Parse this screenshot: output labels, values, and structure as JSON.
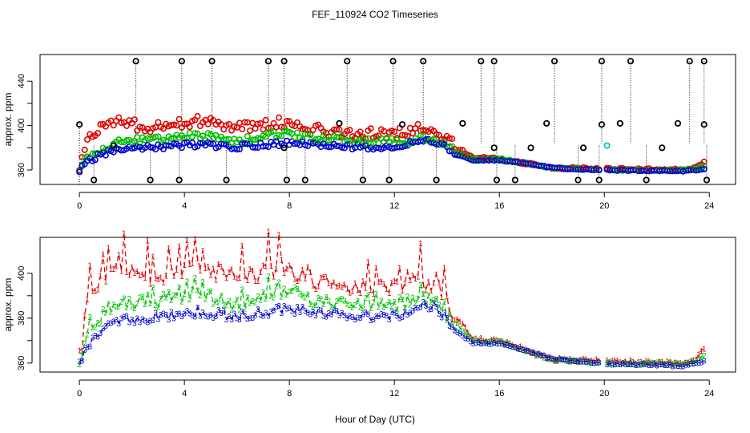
{
  "title": "FEF_110924  CO2 Timeseries",
  "xlabel": "Hour of Day (UTC)",
  "colors": {
    "black": "#000000",
    "red": "#e00000",
    "green": "#00c000",
    "blue": "#0000d0",
    "cyan": "#00c8c8"
  },
  "chart_data": [
    {
      "type": "scatter",
      "name": "top-panel",
      "ylabel": "approx. ppm",
      "xlim": [
        -1.5,
        25
      ],
      "ylim": [
        347,
        464
      ],
      "xticks": [
        0,
        4,
        8,
        12,
        16,
        20,
        24
      ],
      "yticks": [
        360,
        400,
        440
      ],
      "yticks_minor": [
        380,
        420
      ],
      "spike_high": 458,
      "spike_low": 351,
      "spike_base": 402,
      "high_spikes": [
        2.15,
        3.9,
        5.05,
        7.2,
        7.8,
        10.2,
        11.95,
        13.1,
        15.3,
        15.8,
        18.1,
        19.9,
        21.0,
        23.25,
        23.8
      ],
      "low_spikes": [
        0.55,
        2.7,
        3.8,
        5.6,
        7.9,
        8.6,
        10.8,
        11.8,
        13.6,
        15.9,
        16.6,
        19.0,
        19.8,
        21.6,
        23.9
      ],
      "mid_markers": [
        {
          "x": 0.0,
          "y": 401
        },
        {
          "x": 1.3,
          "y": 382
        },
        {
          "x": 7.8,
          "y": 380
        },
        {
          "x": 9.9,
          "y": 402
        },
        {
          "x": 12.3,
          "y": 401
        },
        {
          "x": 14.6,
          "y": 402
        },
        {
          "x": 15.8,
          "y": 380
        },
        {
          "x": 17.2,
          "y": 380
        },
        {
          "x": 17.8,
          "y": 402
        },
        {
          "x": 19.2,
          "y": 380
        },
        {
          "x": 19.9,
          "y": 401
        },
        {
          "x": 20.6,
          "y": 402
        },
        {
          "x": 22.2,
          "y": 380
        },
        {
          "x": 22.8,
          "y": 402
        },
        {
          "x": 23.8,
          "y": 401
        }
      ],
      "cyan_marker": {
        "x": 20.1,
        "y": 382
      }
    },
    {
      "type": "line",
      "name": "bottom-panel",
      "ylabel": "approx. ppm",
      "xlim": [
        -1.5,
        25
      ],
      "ylim": [
        356,
        416
      ],
      "xticks": [
        0,
        4,
        8,
        12,
        16,
        20,
        24
      ],
      "yticks": [
        360,
        380,
        400
      ],
      "yticks_minor": [
        370,
        390
      ],
      "series": [
        {
          "name": "1",
          "color": "#e00000"
        },
        {
          "name": "2",
          "color": "#00c000"
        },
        {
          "name": "3",
          "color": "#0000d0"
        }
      ],
      "gap": [
        19.85,
        20.05
      ],
      "anchors": [
        {
          "h": 0.0,
          "r": 362,
          "g": 361,
          "b": 360
        },
        {
          "h": 0.3,
          "r": 385,
          "g": 372,
          "b": 367
        },
        {
          "h": 0.8,
          "r": 398,
          "g": 378,
          "b": 374
        },
        {
          "h": 1.5,
          "r": 405,
          "g": 386,
          "b": 379
        },
        {
          "h": 2.5,
          "r": 398,
          "g": 387,
          "b": 380
        },
        {
          "h": 4.5,
          "r": 404,
          "g": 391,
          "b": 383
        },
        {
          "h": 6.0,
          "r": 398,
          "g": 386,
          "b": 381
        },
        {
          "h": 7.8,
          "r": 403,
          "g": 393,
          "b": 384
        },
        {
          "h": 9.0,
          "r": 396,
          "g": 388,
          "b": 383
        },
        {
          "h": 10.5,
          "r": 393,
          "g": 387,
          "b": 381
        },
        {
          "h": 12.0,
          "r": 393,
          "g": 385,
          "b": 381
        },
        {
          "h": 13.0,
          "r": 397,
          "g": 389,
          "b": 386
        },
        {
          "h": 13.6,
          "r": 396,
          "g": 388,
          "b": 385
        },
        {
          "h": 14.3,
          "r": 382,
          "g": 377,
          "b": 375
        },
        {
          "h": 15.0,
          "r": 371,
          "g": 370,
          "b": 369
        },
        {
          "h": 16.0,
          "r": 370,
          "g": 370,
          "b": 369
        },
        {
          "h": 17.0,
          "r": 366,
          "g": 366,
          "b": 366
        },
        {
          "h": 18.0,
          "r": 362,
          "g": 362,
          "b": 362
        },
        {
          "h": 20.0,
          "r": 361,
          "g": 360,
          "b": 360
        },
        {
          "h": 23.0,
          "r": 360,
          "g": 360,
          "b": 359
        },
        {
          "h": 23.5,
          "r": 362,
          "g": 361,
          "b": 360
        },
        {
          "h": 23.85,
          "r": 368,
          "g": 364,
          "b": 361
        }
      ]
    }
  ]
}
